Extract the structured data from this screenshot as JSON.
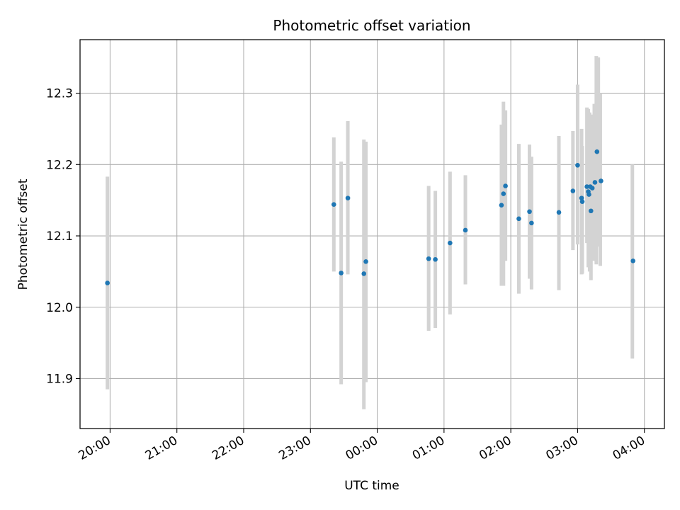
{
  "chart_data": {
    "type": "scatter",
    "title": "Photometric offset variation",
    "xlabel": "UTC time",
    "ylabel": "Photometric offset",
    "grid": true,
    "x_unit": "UTC time (hours; values past 24 wrap to the next day)",
    "xlim": [
      19.55,
      28.3
    ],
    "ylim": [
      11.83,
      12.375
    ],
    "xticks": [
      {
        "value": 20,
        "label": "20:00"
      },
      {
        "value": 21,
        "label": "21:00"
      },
      {
        "value": 22,
        "label": "22:00"
      },
      {
        "value": 23,
        "label": "23:00"
      },
      {
        "value": 24,
        "label": "00:00"
      },
      {
        "value": 25,
        "label": "01:00"
      },
      {
        "value": 26,
        "label": "02:00"
      },
      {
        "value": 27,
        "label": "03:00"
      },
      {
        "value": 28,
        "label": "04:00"
      }
    ],
    "yticks": [
      {
        "value": 11.9,
        "label": "11.9"
      },
      {
        "value": 12.0,
        "label": "12.0"
      },
      {
        "value": 12.1,
        "label": "12.1"
      },
      {
        "value": 12.2,
        "label": "12.2"
      },
      {
        "value": 12.3,
        "label": "12.3"
      }
    ],
    "colors": {
      "marker": "#1f77b4",
      "errorbar": "#d3d3d3",
      "grid": "#b0b0b0"
    },
    "errorbars": [
      {
        "x": 19.96,
        "lo": 11.885,
        "hi": 12.183
      },
      {
        "x": 23.35,
        "lo": 12.05,
        "hi": 12.238
      },
      {
        "x": 23.46,
        "lo": 11.892,
        "hi": 12.204
      },
      {
        "x": 23.56,
        "lo": 12.046,
        "hi": 12.261
      },
      {
        "x": 23.8,
        "lo": 11.857,
        "hi": 12.235
      },
      {
        "x": 23.83,
        "lo": 11.895,
        "hi": 12.232
      },
      {
        "x": 24.77,
        "lo": 11.967,
        "hi": 12.17
      },
      {
        "x": 24.87,
        "lo": 11.971,
        "hi": 12.163
      },
      {
        "x": 25.09,
        "lo": 11.99,
        "hi": 12.19
      },
      {
        "x": 25.32,
        "lo": 12.032,
        "hi": 12.185
      },
      {
        "x": 25.86,
        "lo": 12.03,
        "hi": 12.256
      },
      {
        "x": 25.89,
        "lo": 12.03,
        "hi": 12.288
      },
      {
        "x": 25.92,
        "lo": 12.065,
        "hi": 12.276
      },
      {
        "x": 26.12,
        "lo": 12.019,
        "hi": 12.229
      },
      {
        "x": 26.28,
        "lo": 12.04,
        "hi": 12.228
      },
      {
        "x": 26.31,
        "lo": 12.025,
        "hi": 12.211
      },
      {
        "x": 26.72,
        "lo": 12.024,
        "hi": 12.24
      },
      {
        "x": 26.93,
        "lo": 12.08,
        "hi": 12.247
      },
      {
        "x": 27.0,
        "lo": 12.088,
        "hi": 12.312
      },
      {
        "x": 27.06,
        "lo": 12.046,
        "hi": 12.25
      },
      {
        "x": 27.07,
        "lo": 12.047,
        "hi": 12.226
      },
      {
        "x": 27.14,
        "lo": 12.09,
        "hi": 12.28
      },
      {
        "x": 27.16,
        "lo": 12.056,
        "hi": 12.278
      },
      {
        "x": 27.18,
        "lo": 12.05,
        "hi": 12.273
      },
      {
        "x": 27.2,
        "lo": 12.038,
        "hi": 12.236
      },
      {
        "x": 27.22,
        "lo": 12.07,
        "hi": 12.27
      },
      {
        "x": 27.25,
        "lo": 12.065,
        "hi": 12.285
      },
      {
        "x": 27.28,
        "lo": 12.06,
        "hi": 12.352
      },
      {
        "x": 27.31,
        "lo": 12.085,
        "hi": 12.35
      },
      {
        "x": 27.34,
        "lo": 12.058,
        "hi": 12.3
      },
      {
        "x": 27.82,
        "lo": 11.928,
        "hi": 12.2
      }
    ],
    "points": [
      {
        "x": 19.96,
        "y": 12.034
      },
      {
        "x": 23.35,
        "y": 12.144
      },
      {
        "x": 23.46,
        "y": 12.048
      },
      {
        "x": 23.56,
        "y": 12.153
      },
      {
        "x": 23.8,
        "y": 12.047
      },
      {
        "x": 23.83,
        "y": 12.064
      },
      {
        "x": 24.77,
        "y": 12.068
      },
      {
        "x": 24.87,
        "y": 12.067
      },
      {
        "x": 25.09,
        "y": 12.09
      },
      {
        "x": 25.32,
        "y": 12.108
      },
      {
        "x": 25.86,
        "y": 12.143
      },
      {
        "x": 25.89,
        "y": 12.159
      },
      {
        "x": 25.92,
        "y": 12.17
      },
      {
        "x": 26.12,
        "y": 12.124
      },
      {
        "x": 26.28,
        "y": 12.134
      },
      {
        "x": 26.31,
        "y": 12.118
      },
      {
        "x": 26.72,
        "y": 12.133
      },
      {
        "x": 26.93,
        "y": 12.163
      },
      {
        "x": 27.0,
        "y": 12.199
      },
      {
        "x": 27.06,
        "y": 12.153
      },
      {
        "x": 27.07,
        "y": 12.148
      },
      {
        "x": 27.14,
        "y": 12.169
      },
      {
        "x": 27.16,
        "y": 12.162
      },
      {
        "x": 27.17,
        "y": 12.158
      },
      {
        "x": 27.19,
        "y": 12.169
      },
      {
        "x": 27.2,
        "y": 12.135
      },
      {
        "x": 27.22,
        "y": 12.167
      },
      {
        "x": 27.26,
        "y": 12.175
      },
      {
        "x": 27.29,
        "y": 12.218
      },
      {
        "x": 27.35,
        "y": 12.177
      },
      {
        "x": 27.83,
        "y": 12.065
      }
    ]
  }
}
